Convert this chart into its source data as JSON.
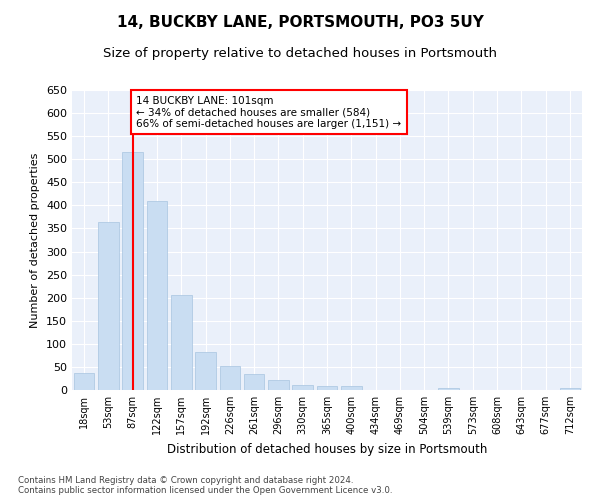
{
  "title": "14, BUCKBY LANE, PORTSMOUTH, PO3 5UY",
  "subtitle": "Size of property relative to detached houses in Portsmouth",
  "xlabel": "Distribution of detached houses by size in Portsmouth",
  "ylabel": "Number of detached properties",
  "bar_color": "#c9ddf2",
  "bar_edge_color": "#a8c4e0",
  "categories": [
    "18sqm",
    "53sqm",
    "87sqm",
    "122sqm",
    "157sqm",
    "192sqm",
    "226sqm",
    "261sqm",
    "296sqm",
    "330sqm",
    "365sqm",
    "400sqm",
    "434sqm",
    "469sqm",
    "504sqm",
    "539sqm",
    "573sqm",
    "608sqm",
    "643sqm",
    "677sqm",
    "712sqm"
  ],
  "values": [
    36,
    365,
    515,
    410,
    205,
    83,
    52,
    35,
    22,
    11,
    8,
    8,
    0,
    0,
    0,
    4,
    0,
    0,
    0,
    0,
    4
  ],
  "ylim": [
    0,
    650
  ],
  "yticks": [
    0,
    50,
    100,
    150,
    200,
    250,
    300,
    350,
    400,
    450,
    500,
    550,
    600,
    650
  ],
  "red_line_x": 2,
  "annotation_text": "14 BUCKBY LANE: 101sqm\n← 34% of detached houses are smaller (584)\n66% of semi-detached houses are larger (1,151) →",
  "annotation_box_color": "white",
  "annotation_box_edgecolor": "red",
  "red_line_color": "#ff0000",
  "bg_color": "#eaf0fa",
  "footer": "Contains HM Land Registry data © Crown copyright and database right 2024.\nContains public sector information licensed under the Open Government Licence v3.0.",
  "grid_color": "#ffffff",
  "title_fontsize": 11,
  "subtitle_fontsize": 9.5
}
